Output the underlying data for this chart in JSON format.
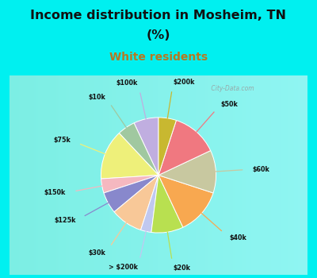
{
  "title_line1": "Income distribution in Mosheim, TN",
  "title_line2": "(%)",
  "subtitle": "White residents",
  "title_color": "#111111",
  "subtitle_color": "#b87820",
  "bg_cyan": "#00f0f0",
  "bg_chart": "#e8f5ee",
  "labels": [
    "$100k",
    "$10k",
    "$75k",
    "$150k",
    "$125k",
    "$30k",
    "> $200k",
    "$20k",
    "$40k",
    "$60k",
    "$50k",
    "$200k"
  ],
  "values": [
    7,
    5,
    14,
    4,
    6,
    9,
    3,
    9,
    13,
    12,
    13,
    5
  ],
  "colors": [
    "#c0aee0",
    "#a0c8a0",
    "#eef07a",
    "#f5b8c0",
    "#8888cc",
    "#f8c898",
    "#c0c8f0",
    "#b8e050",
    "#f8a850",
    "#c8c8a0",
    "#f07880",
    "#c8b830"
  ],
  "startangle": 90,
  "watermark": " City-Data.com"
}
